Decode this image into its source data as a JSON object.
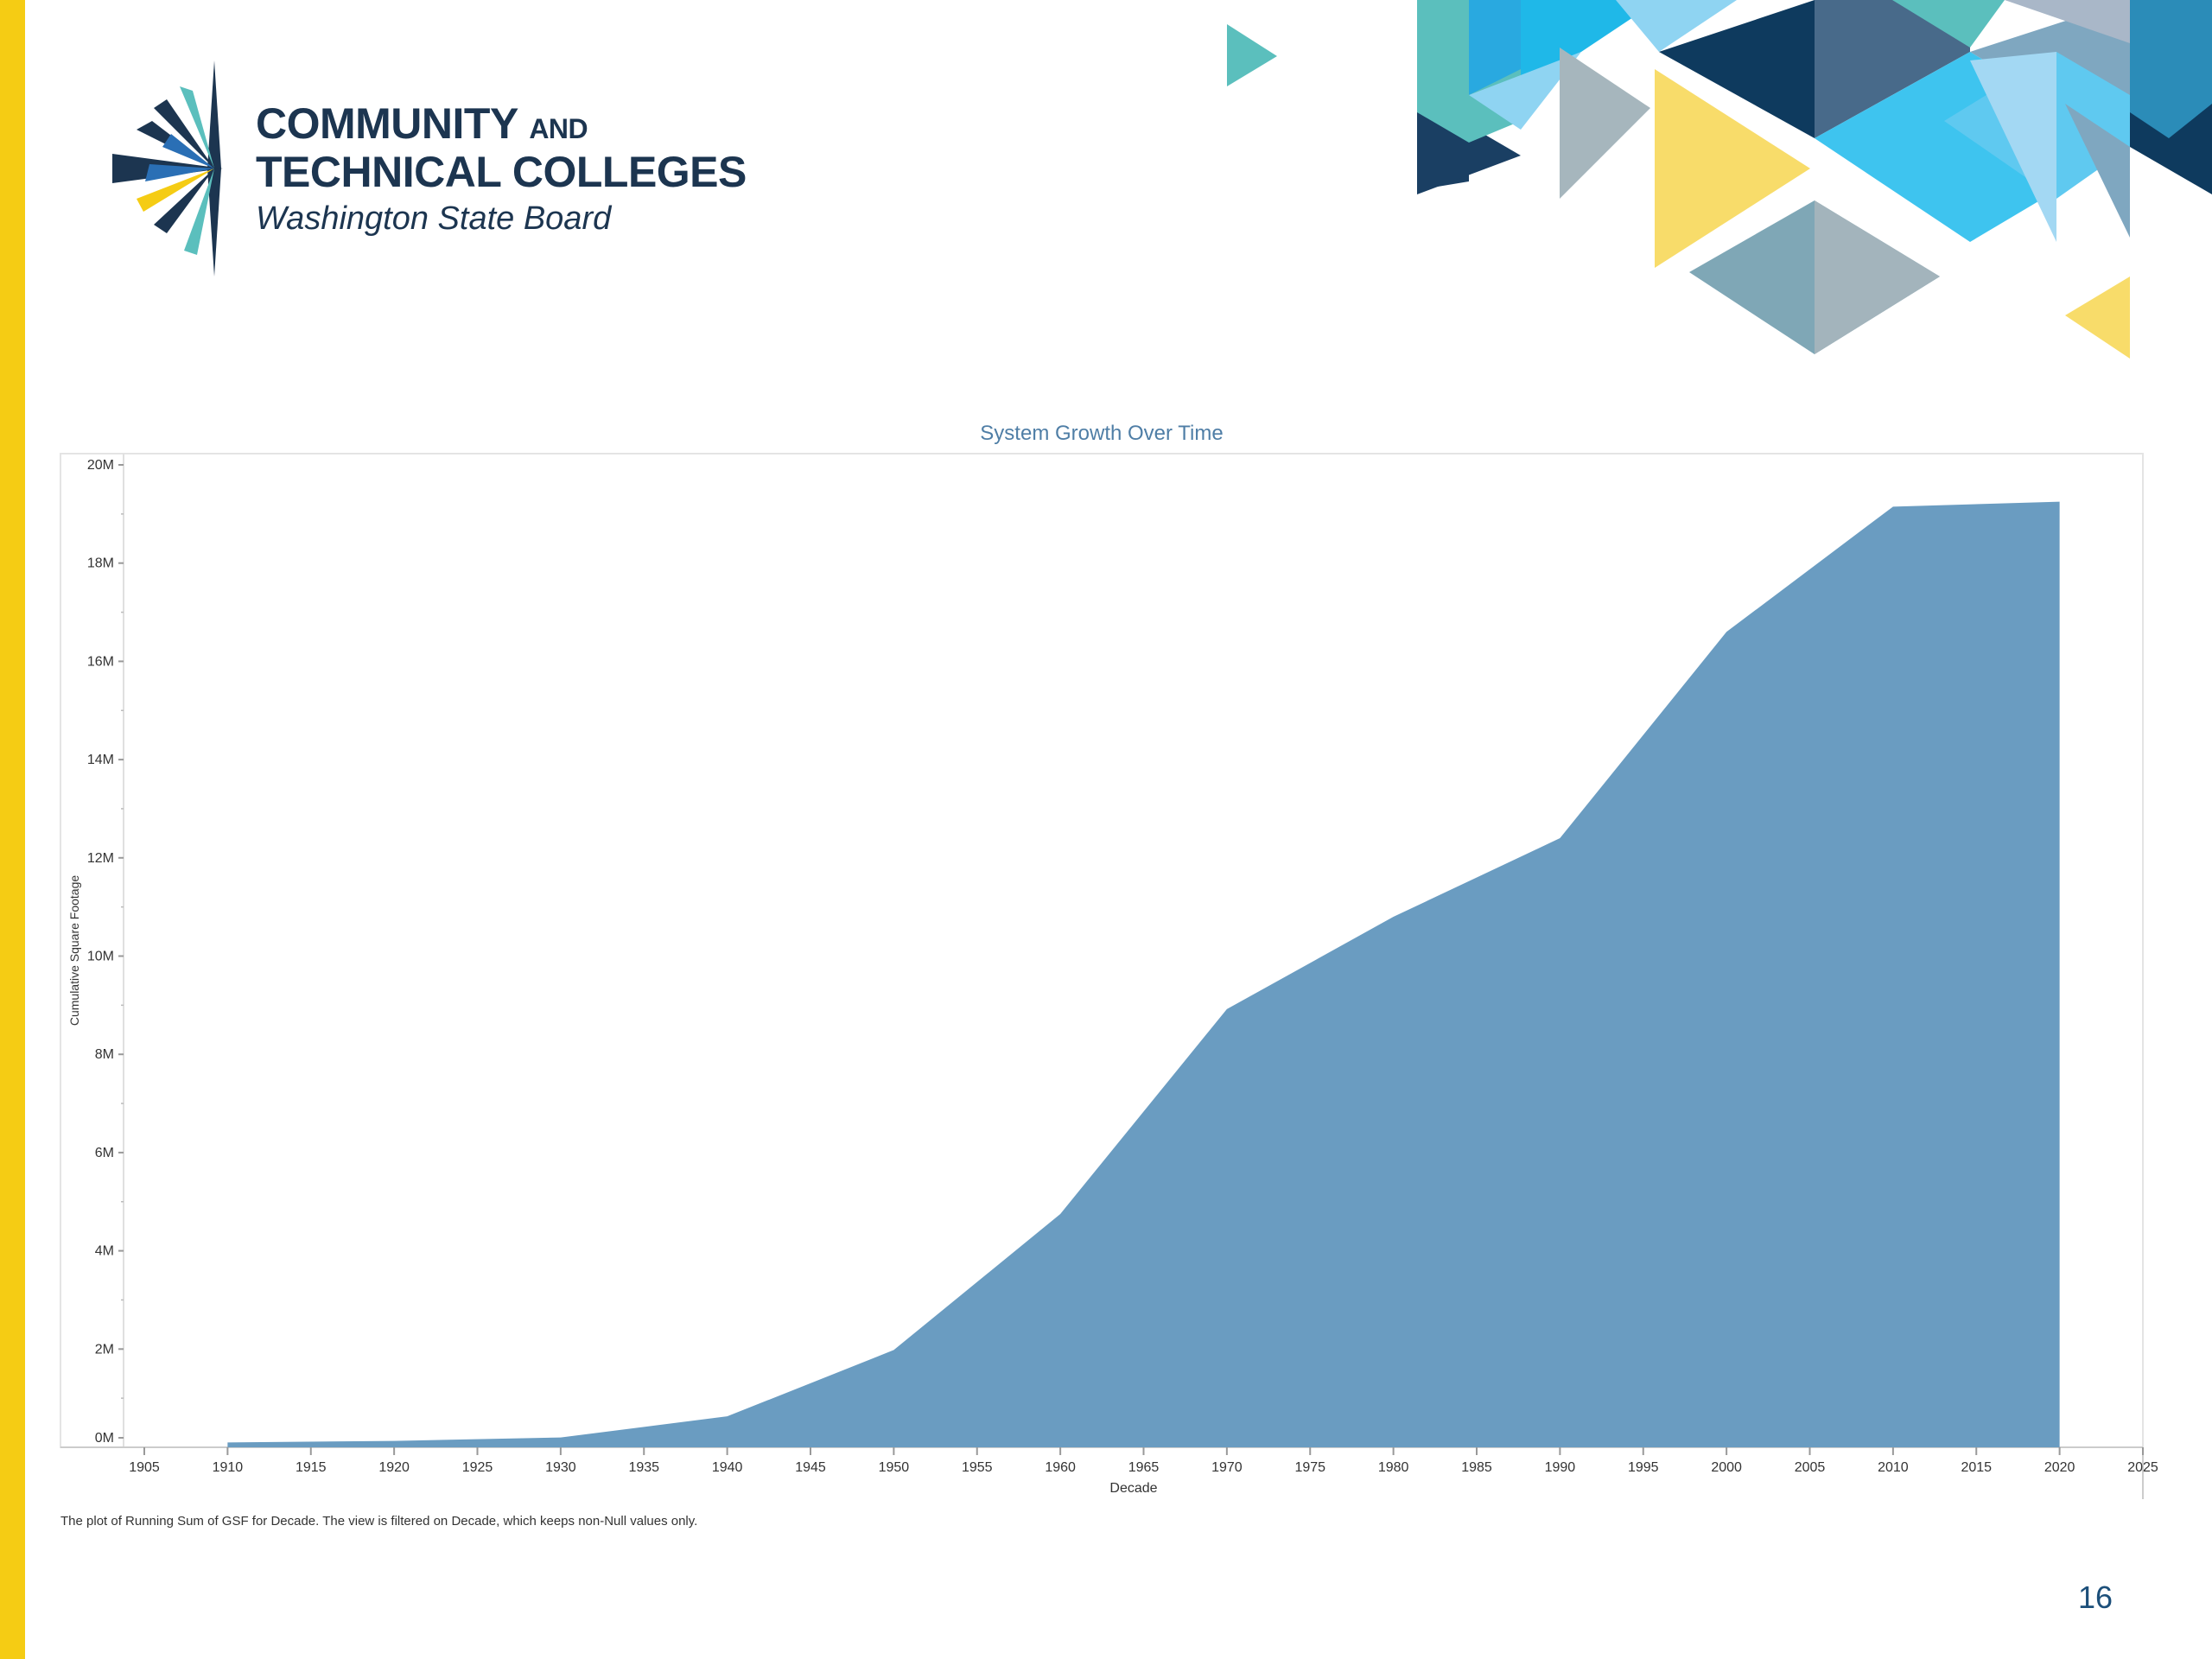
{
  "logo": {
    "line1": "COMMUNITY",
    "line1_suffix": "AND",
    "line2": "TECHNICAL COLLEGES",
    "line3": "Washington State Board"
  },
  "page_number": "16",
  "colors": {
    "area": "#6a9cc1",
    "title": "#4f7ea6",
    "left_bar": "#f5cc14",
    "brand_navy": "#1c3550"
  },
  "chart_data": {
    "type": "area",
    "title": "System Growth Over Time",
    "xlabel": "Decade",
    "ylabel": "Cumulative Square Footage",
    "xlim": [
      1905,
      2025
    ],
    "ylim": [
      0,
      20000000
    ],
    "x_ticks": [
      "1905",
      "1910",
      "1915",
      "1920",
      "1925",
      "1930",
      "1935",
      "1940",
      "1945",
      "1950",
      "1955",
      "1960",
      "1965",
      "1970",
      "1975",
      "1980",
      "1985",
      "1990",
      "1995",
      "2000",
      "2005",
      "2010",
      "2015",
      "2020",
      "2025"
    ],
    "y_ticks": [
      "0M",
      "2M",
      "4M",
      "6M",
      "8M",
      "10M",
      "12M",
      "14M",
      "16M",
      "18M",
      "20M"
    ],
    "x": [
      1910,
      1920,
      1930,
      1940,
      1950,
      1960,
      1970,
      1980,
      1990,
      2000,
      2010,
      2020
    ],
    "values": [
      100000,
      130000,
      200000,
      630000,
      1980000,
      4750000,
      8920000,
      10800000,
      12400000,
      16600000,
      19150000,
      19250000
    ],
    "note": "The plot of Running Sum of GSF for Decade. The view is filtered on Decade, which keeps non-Null values only.",
    "grid": false,
    "legend": "none"
  }
}
